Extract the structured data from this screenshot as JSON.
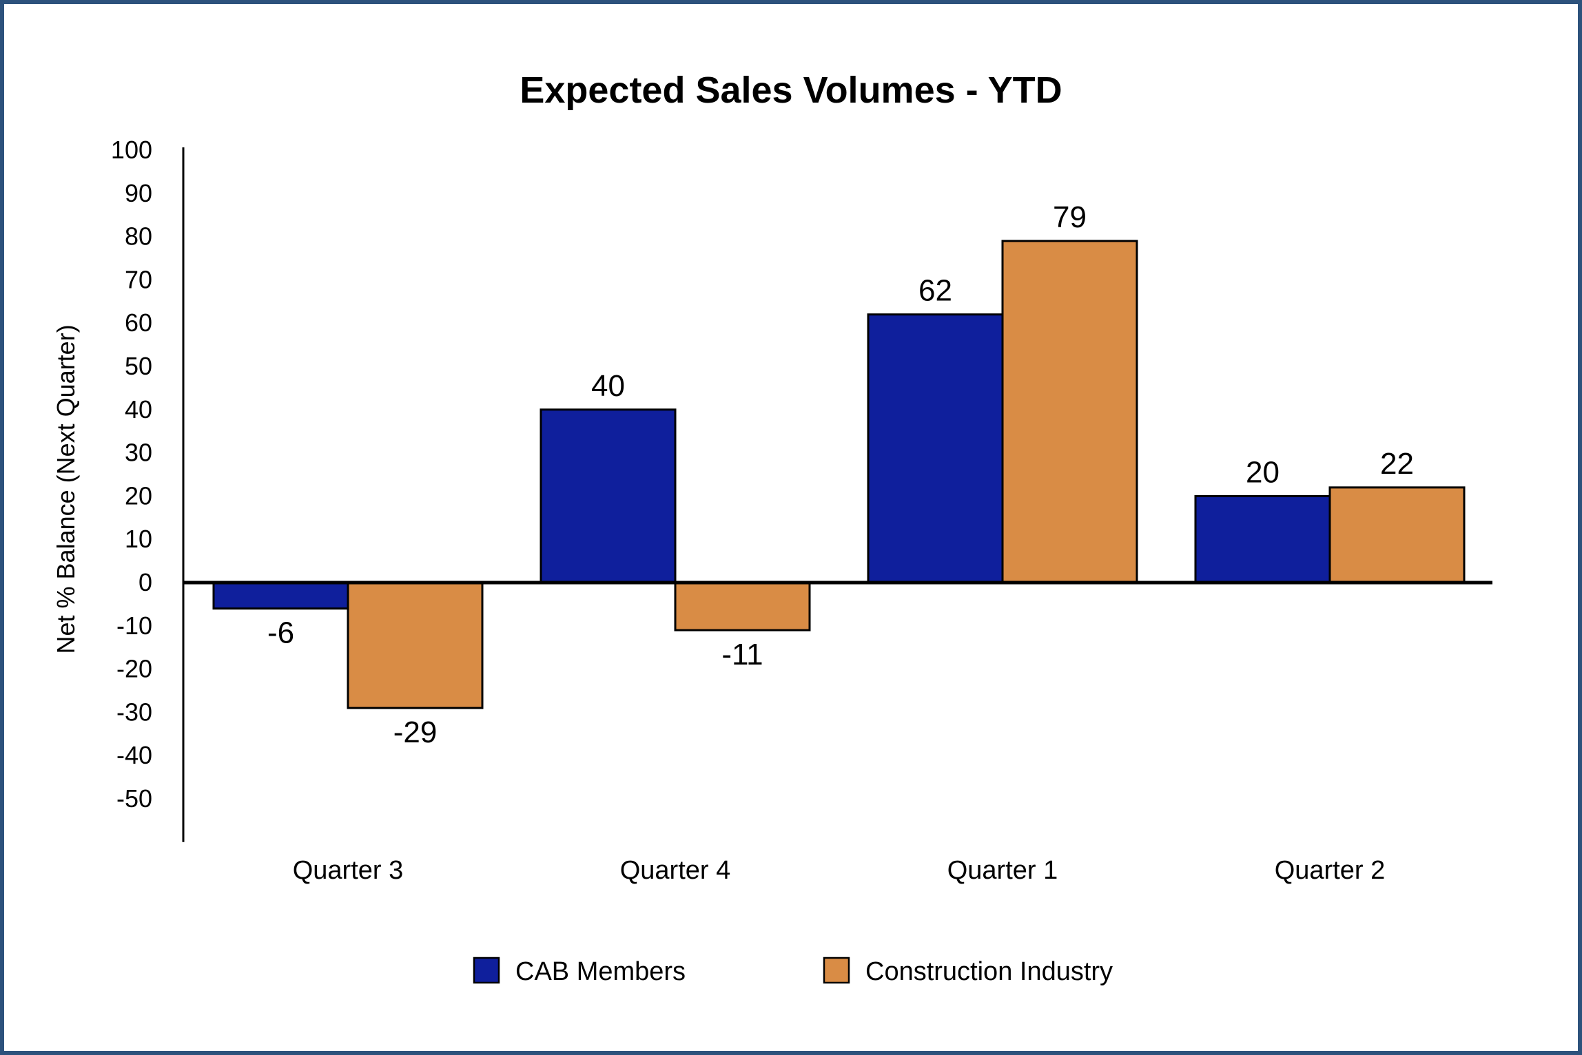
{
  "chart_data": {
    "type": "bar",
    "title": "Expected Sales Volumes - YTD",
    "ylabel": "Net % Balance (Next Quarter)",
    "xlabel": "",
    "categories": [
      "Quarter 3",
      "Quarter 4",
      "Quarter 1",
      "Quarter 2"
    ],
    "series": [
      {
        "name": "CAB Members",
        "values": [
          -6,
          40,
          62,
          20
        ],
        "color": "#0f1f9c"
      },
      {
        "name": "Construction Industry",
        "values": [
          -29,
          -11,
          79,
          22
        ],
        "color": "#d98c45"
      }
    ],
    "ylim": [
      -60,
      100
    ],
    "yticks": [
      100,
      90,
      80,
      70,
      60,
      50,
      40,
      30,
      20,
      10,
      0,
      -10,
      -20,
      -30,
      -40,
      -50
    ],
    "grid": false,
    "legend_position": "bottom",
    "data_labels": true
  },
  "colors": {
    "frame_border": "#2d527c"
  }
}
